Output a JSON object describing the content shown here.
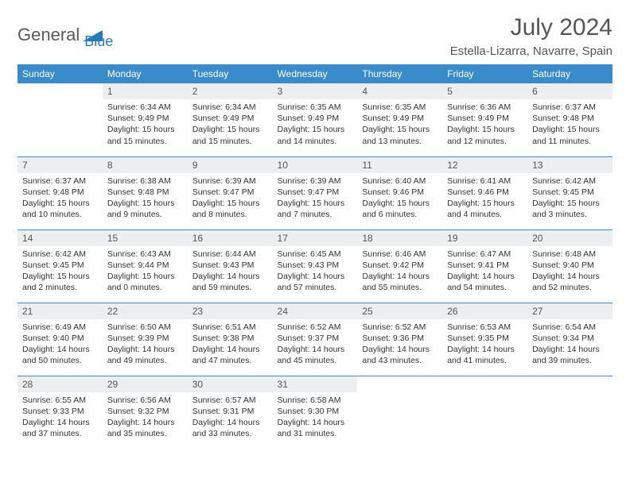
{
  "brand": {
    "word1": "General",
    "word2": "Blue"
  },
  "colors": {
    "header_bg": "#3a8bc9",
    "header_text": "#ffffff",
    "daynum_bg": "#eceeef",
    "border": "#3a8bc9",
    "logo_gray": "#5a5a5a",
    "logo_blue": "#2a7ab9"
  },
  "title": "July 2024",
  "location": "Estella-Lizarra, Navarre, Spain",
  "weekdays": [
    "Sunday",
    "Monday",
    "Tuesday",
    "Wednesday",
    "Thursday",
    "Friday",
    "Saturday"
  ],
  "weeks": [
    [
      null,
      {
        "n": "1",
        "sr": "6:34 AM",
        "ss": "9:49 PM",
        "dl": "15 hours and 15 minutes."
      },
      {
        "n": "2",
        "sr": "6:34 AM",
        "ss": "9:49 PM",
        "dl": "15 hours and 15 minutes."
      },
      {
        "n": "3",
        "sr": "6:35 AM",
        "ss": "9:49 PM",
        "dl": "15 hours and 14 minutes."
      },
      {
        "n": "4",
        "sr": "6:35 AM",
        "ss": "9:49 PM",
        "dl": "15 hours and 13 minutes."
      },
      {
        "n": "5",
        "sr": "6:36 AM",
        "ss": "9:49 PM",
        "dl": "15 hours and 12 minutes."
      },
      {
        "n": "6",
        "sr": "6:37 AM",
        "ss": "9:48 PM",
        "dl": "15 hours and 11 minutes."
      }
    ],
    [
      {
        "n": "7",
        "sr": "6:37 AM",
        "ss": "9:48 PM",
        "dl": "15 hours and 10 minutes."
      },
      {
        "n": "8",
        "sr": "6:38 AM",
        "ss": "9:48 PM",
        "dl": "15 hours and 9 minutes."
      },
      {
        "n": "9",
        "sr": "6:39 AM",
        "ss": "9:47 PM",
        "dl": "15 hours and 8 minutes."
      },
      {
        "n": "10",
        "sr": "6:39 AM",
        "ss": "9:47 PM",
        "dl": "15 hours and 7 minutes."
      },
      {
        "n": "11",
        "sr": "6:40 AM",
        "ss": "9:46 PM",
        "dl": "15 hours and 6 minutes."
      },
      {
        "n": "12",
        "sr": "6:41 AM",
        "ss": "9:46 PM",
        "dl": "15 hours and 4 minutes."
      },
      {
        "n": "13",
        "sr": "6:42 AM",
        "ss": "9:45 PM",
        "dl": "15 hours and 3 minutes."
      }
    ],
    [
      {
        "n": "14",
        "sr": "6:42 AM",
        "ss": "9:45 PM",
        "dl": "15 hours and 2 minutes."
      },
      {
        "n": "15",
        "sr": "6:43 AM",
        "ss": "9:44 PM",
        "dl": "15 hours and 0 minutes."
      },
      {
        "n": "16",
        "sr": "6:44 AM",
        "ss": "9:43 PM",
        "dl": "14 hours and 59 minutes."
      },
      {
        "n": "17",
        "sr": "6:45 AM",
        "ss": "9:43 PM",
        "dl": "14 hours and 57 minutes."
      },
      {
        "n": "18",
        "sr": "6:46 AM",
        "ss": "9:42 PM",
        "dl": "14 hours and 55 minutes."
      },
      {
        "n": "19",
        "sr": "6:47 AM",
        "ss": "9:41 PM",
        "dl": "14 hours and 54 minutes."
      },
      {
        "n": "20",
        "sr": "6:48 AM",
        "ss": "9:40 PM",
        "dl": "14 hours and 52 minutes."
      }
    ],
    [
      {
        "n": "21",
        "sr": "6:49 AM",
        "ss": "9:40 PM",
        "dl": "14 hours and 50 minutes."
      },
      {
        "n": "22",
        "sr": "6:50 AM",
        "ss": "9:39 PM",
        "dl": "14 hours and 49 minutes."
      },
      {
        "n": "23",
        "sr": "6:51 AM",
        "ss": "9:38 PM",
        "dl": "14 hours and 47 minutes."
      },
      {
        "n": "24",
        "sr": "6:52 AM",
        "ss": "9:37 PM",
        "dl": "14 hours and 45 minutes."
      },
      {
        "n": "25",
        "sr": "6:52 AM",
        "ss": "9:36 PM",
        "dl": "14 hours and 43 minutes."
      },
      {
        "n": "26",
        "sr": "6:53 AM",
        "ss": "9:35 PM",
        "dl": "14 hours and 41 minutes."
      },
      {
        "n": "27",
        "sr": "6:54 AM",
        "ss": "9:34 PM",
        "dl": "14 hours and 39 minutes."
      }
    ],
    [
      {
        "n": "28",
        "sr": "6:55 AM",
        "ss": "9:33 PM",
        "dl": "14 hours and 37 minutes."
      },
      {
        "n": "29",
        "sr": "6:56 AM",
        "ss": "9:32 PM",
        "dl": "14 hours and 35 minutes."
      },
      {
        "n": "30",
        "sr": "6:57 AM",
        "ss": "9:31 PM",
        "dl": "14 hours and 33 minutes."
      },
      {
        "n": "31",
        "sr": "6:58 AM",
        "ss": "9:30 PM",
        "dl": "14 hours and 31 minutes."
      },
      null,
      null,
      null
    ]
  ],
  "labels": {
    "sunrise": "Sunrise:",
    "sunset": "Sunset:",
    "daylight": "Daylight:"
  }
}
